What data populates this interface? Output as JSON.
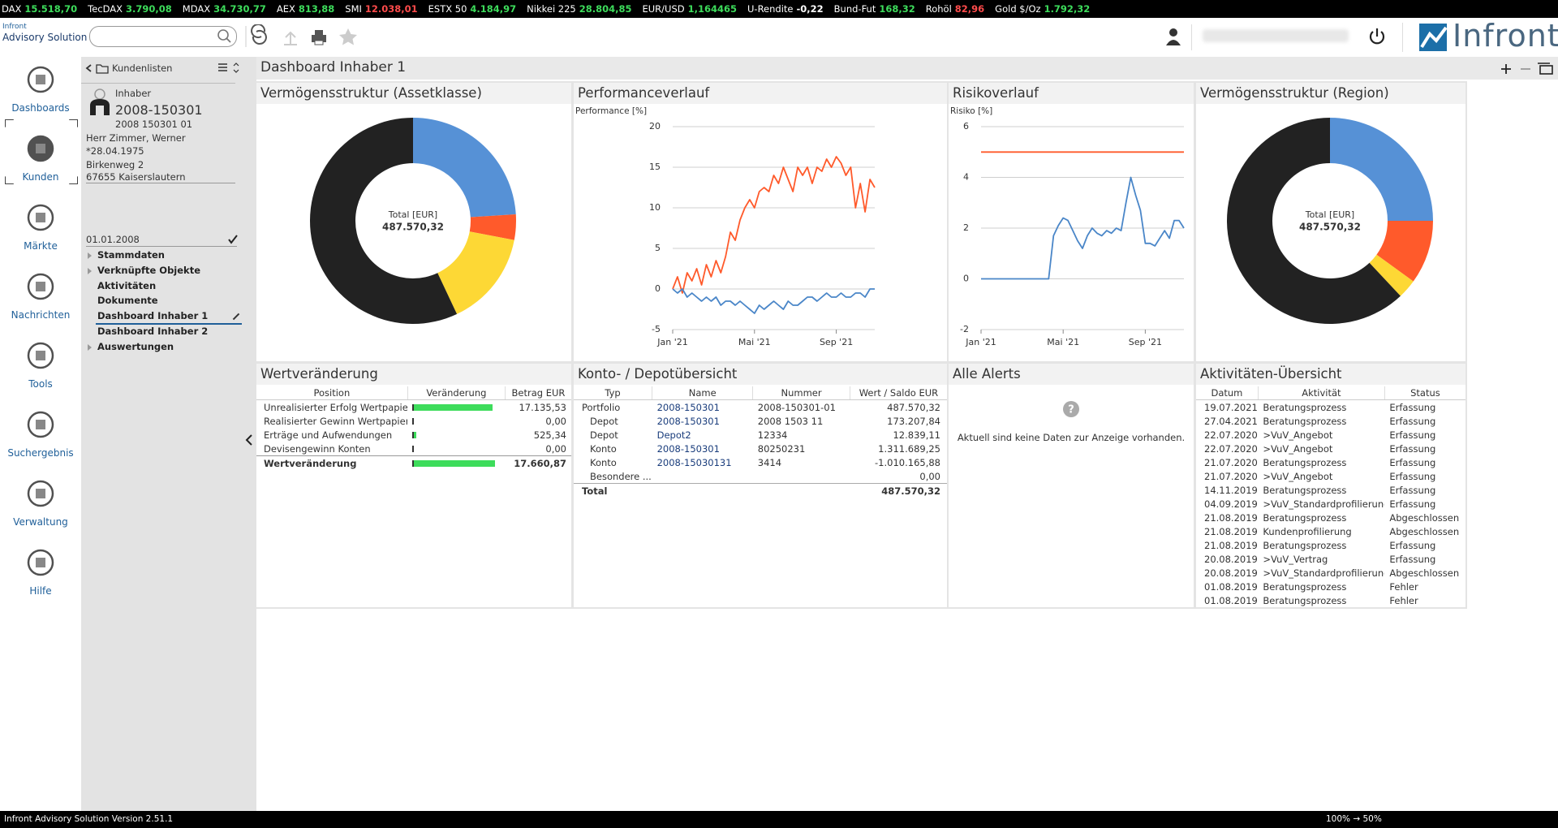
{
  "ticker": [
    {
      "name": "DAX",
      "value": "15.518,70",
      "color": "#3ddc5b"
    },
    {
      "name": "TecDAX",
      "value": "3.790,08",
      "color": "#3ddc5b"
    },
    {
      "name": "MDAX",
      "value": "34.730,77",
      "color": "#3ddc5b"
    },
    {
      "name": "AEX",
      "value": "813,88",
      "color": "#3ddc5b"
    },
    {
      "name": "SMI",
      "value": "12.038,01",
      "color": "#ff4b4b"
    },
    {
      "name": "ESTX 50",
      "value": "4.184,97",
      "color": "#3ddc5b"
    },
    {
      "name": "Nikkei 225",
      "value": "28.804,85",
      "color": "#3ddc5b"
    },
    {
      "name": "EUR/USD",
      "value": "1,164465",
      "color": "#3ddc5b"
    },
    {
      "name": "U-Rendite",
      "value": "-0,22",
      "color": "#ffffff"
    },
    {
      "name": "Bund-Fut",
      "value": "168,32",
      "color": "#3ddc5b"
    },
    {
      "name": "Rohöl",
      "value": "82,96",
      "color": "#ff4b4b"
    },
    {
      "name": "Gold $/Oz",
      "value": "1.792,32",
      "color": "#3ddc5b"
    }
  ],
  "header": {
    "brand_small": "Infront",
    "product": "Advisory Solution",
    "brand": "Infront"
  },
  "nav": [
    "Dashboards",
    "Kunden",
    "Märkte",
    "Nachrichten",
    "Tools",
    "Suchergebnis",
    "Verwaltung",
    "Hilfe"
  ],
  "client_panel": {
    "title": "Kundenlisten",
    "role": "Inhaber",
    "id": "2008-150301",
    "sub_id": "2008 150301 01",
    "name": "Herr Zimmer, Werner",
    "birth": "*28.04.1975",
    "street": "Birkenweg 2",
    "city": "67655 Kaiserslautern",
    "date": "01.01.2008",
    "tree": [
      {
        "label": "Stammdaten",
        "expandable": true
      },
      {
        "label": "Verknüpfte Objekte",
        "expandable": true
      },
      {
        "label": "Aktivitäten",
        "expandable": false
      },
      {
        "label": "Dokumente",
        "expandable": false
      },
      {
        "label": "Dashboard Inhaber 1",
        "expandable": false,
        "selected": true
      },
      {
        "label": "Dashboard Inhaber 2",
        "expandable": false
      },
      {
        "label": "Auswertungen",
        "expandable": true
      }
    ]
  },
  "page_title": "Dashboard Inhaber 1",
  "chart_data": [
    {
      "type": "pie",
      "title": "Vermögensstruktur (Assetklasse)",
      "center_label": "Total [EUR]",
      "center_value": "487.570,32",
      "values": [
        24,
        4,
        15,
        57
      ],
      "colors": [
        "#5691d6",
        "#ff5a2b",
        "#fdd835",
        "#222222"
      ]
    },
    {
      "type": "line",
      "title": "Performanceverlauf",
      "y_label": "Performance [%]",
      "x": [
        0,
        1,
        2,
        3,
        4,
        5,
        6,
        7,
        8,
        9,
        10,
        11,
        12,
        13,
        14,
        15,
        16,
        17,
        18,
        19,
        20,
        21,
        22,
        23,
        24,
        25,
        26,
        27,
        28,
        29,
        30,
        31,
        32,
        33,
        34,
        35,
        36,
        37,
        38,
        39,
        40,
        41,
        42
      ],
      "xlim": [
        0,
        42
      ],
      "xticks": [
        {
          "value": 0,
          "label": "Jan '21"
        },
        {
          "value": 17,
          "label": "Mai '21"
        },
        {
          "value": 34,
          "label": "Sep '21"
        }
      ],
      "ylim": [
        -5,
        20
      ],
      "yticks": [
        -5,
        0,
        5,
        10,
        15,
        20
      ],
      "grid": true,
      "series": [
        {
          "color": "#ff5a2b",
          "values": [
            0,
            1.5,
            -0.5,
            2,
            1,
            2.5,
            0.5,
            3,
            1.5,
            3.5,
            2,
            4,
            7,
            6,
            8.5,
            10,
            11,
            10,
            12,
            12.5,
            12,
            14,
            13,
            15,
            13.5,
            12,
            15,
            14,
            15,
            13,
            15,
            14.5,
            16,
            15,
            16.3,
            15.5,
            14,
            15,
            10,
            13,
            9.5,
            13.5,
            12.5
          ]
        },
        {
          "color": "#4a86c8",
          "values": [
            0,
            -0.5,
            0,
            -1,
            -0.5,
            -1,
            -1.5,
            -1,
            -1.5,
            -1,
            -2,
            -1.5,
            -1.5,
            -2,
            -1.5,
            -2,
            -2.5,
            -3,
            -2,
            -2.5,
            -2,
            -1.5,
            -2,
            -2.5,
            -1.5,
            -2,
            -2,
            -1.5,
            -1,
            -1,
            -1.5,
            -1,
            -0.5,
            -1,
            -1,
            -0.5,
            -1,
            -1,
            -0.5,
            -0.5,
            -1,
            0,
            0
          ]
        }
      ]
    },
    {
      "type": "line",
      "title": "Risikoverlauf",
      "y_label": "Risiko [%]",
      "x": [
        0,
        1,
        2,
        3,
        4,
        5,
        6,
        7,
        8,
        9,
        10,
        11,
        12,
        13,
        14,
        15,
        16,
        17,
        18,
        19,
        20,
        21,
        22,
        23,
        24,
        25,
        26,
        27,
        28,
        29,
        30,
        31,
        32,
        33,
        34,
        35,
        36,
        37,
        38,
        39,
        40,
        41,
        42
      ],
      "xlim": [
        0,
        42
      ],
      "xticks": [
        {
          "value": 0,
          "label": "Jan '21"
        },
        {
          "value": 17,
          "label": "Mai '21"
        },
        {
          "value": 34,
          "label": "Sep '21"
        }
      ],
      "ylim": [
        -2,
        6
      ],
      "yticks": [
        -2,
        0,
        2,
        4,
        6
      ],
      "grid": true,
      "series": [
        {
          "color": "#ff5a2b",
          "x": [
            0,
            42
          ],
          "values": [
            5,
            5
          ]
        },
        {
          "color": "#4a86c8",
          "values": [
            0,
            0,
            0,
            0,
            0,
            0,
            0,
            0,
            0,
            0,
            0,
            0,
            0,
            0,
            0,
            1.7,
            2.1,
            2.4,
            2.3,
            1.9,
            1.5,
            1.2,
            1.7,
            2,
            1.8,
            1.7,
            1.9,
            1.8,
            2,
            1.9,
            3,
            4,
            3.3,
            2.7,
            1.4,
            1.4,
            1.3,
            1.6,
            1.9,
            1.6,
            2.3,
            2.3,
            2
          ]
        }
      ]
    },
    {
      "type": "pie",
      "title": "Vermögensstruktur (Region)",
      "center_label": "Total [EUR]",
      "center_value": "487.570,32",
      "values": [
        25,
        10,
        3,
        62
      ],
      "colors": [
        "#5691d6",
        "#ff5a2b",
        "#fdd835",
        "#222222"
      ]
    }
  ],
  "value_table": {
    "title": "Wertveränderung",
    "columns": [
      "Position",
      "Veränderung",
      "Betrag EUR"
    ],
    "bar_color": "#3ddc5b",
    "xlim": [
      0,
      17660.87
    ],
    "rows": [
      {
        "position": "Unrealisierter Erfolg Wertpapiere",
        "value": 17135.53,
        "label": "17.135,53"
      },
      {
        "position": "Realisierter Gewinn Wertpapiere",
        "value": 0,
        "label": "0,00"
      },
      {
        "position": "Erträge und Aufwendungen",
        "value": 525.34,
        "label": "525,34"
      },
      {
        "position": "Devisengewinn Konten",
        "value": 0,
        "label": "0,00"
      }
    ],
    "total": {
      "position": "Wertveränderung",
      "value": 17660.87,
      "label": "17.660,87"
    }
  },
  "account_table": {
    "title": "Konto- / Depotübersicht",
    "columns": [
      "Typ",
      "Name",
      "Nummer",
      "Wert / Saldo EUR"
    ],
    "rows": [
      {
        "type": "Portfolio",
        "name": "2008-150301",
        "number": "2008-150301-01",
        "value": "487.570,32",
        "indent": false
      },
      {
        "type": "Depot",
        "name": "2008-150301",
        "number": "2008 1503 11",
        "value": "173.207,84",
        "indent": true
      },
      {
        "type": "Depot",
        "name": "Depot2",
        "number": "12334",
        "value": "12.839,11",
        "indent": true
      },
      {
        "type": "Konto",
        "name": "2008-150301",
        "number": "80250231",
        "value": "1.311.689,25",
        "indent": true
      },
      {
        "type": "Konto",
        "name": "2008-15030131",
        "number": "3414",
        "value": "-1.010.165,88",
        "indent": true
      },
      {
        "type": "Besondere ...",
        "value": "0,00",
        "indent": true
      }
    ],
    "total": {
      "type": "Total",
      "value": "487.570,32"
    }
  },
  "alerts": {
    "title": "Alle Alerts",
    "message": "Aktuell sind keine Daten zur Anzeige vorhanden."
  },
  "activities": {
    "title": "Aktivitäten-Übersicht",
    "columns": [
      "Datum",
      "Aktivität",
      "Status"
    ],
    "rows": [
      [
        "19.07.2021",
        "Beratungsprozess",
        "Erfassung"
      ],
      [
        "27.04.2021",
        "Beratungsprozess",
        "Erfassung"
      ],
      [
        "22.07.2020",
        ">VuV_Angebot",
        "Erfassung"
      ],
      [
        "22.07.2020",
        ">VuV_Angebot",
        "Erfassung"
      ],
      [
        "21.07.2020",
        "Beratungsprozess",
        "Erfassung"
      ],
      [
        "21.07.2020",
        ">VuV_Angebot",
        "Erfassung"
      ],
      [
        "14.11.2019",
        "Beratungsprozess",
        "Erfassung"
      ],
      [
        "04.09.2019",
        ">VuV_Standardprofilierung",
        "Erfassung"
      ],
      [
        "21.08.2019",
        "Beratungsprozess",
        "Abgeschlossen"
      ],
      [
        "21.08.2019",
        "Kundenprofilierung",
        "Abgeschlossen"
      ],
      [
        "21.08.2019",
        "Beratungsprozess",
        "Erfassung"
      ],
      [
        "20.08.2019",
        ">VuV_Vertrag",
        "Erfassung"
      ],
      [
        "20.08.2019",
        ">VuV_Standardprofilierung",
        "Abgeschlossen"
      ],
      [
        "01.08.2019",
        "Beratungsprozess",
        "Fehler"
      ],
      [
        "01.08.2019",
        "Beratungsprozess",
        "Fehler"
      ]
    ]
  },
  "footer": {
    "version": "Infront Advisory Solution Version 2.51.1",
    "zoom": "100% → 50%"
  }
}
